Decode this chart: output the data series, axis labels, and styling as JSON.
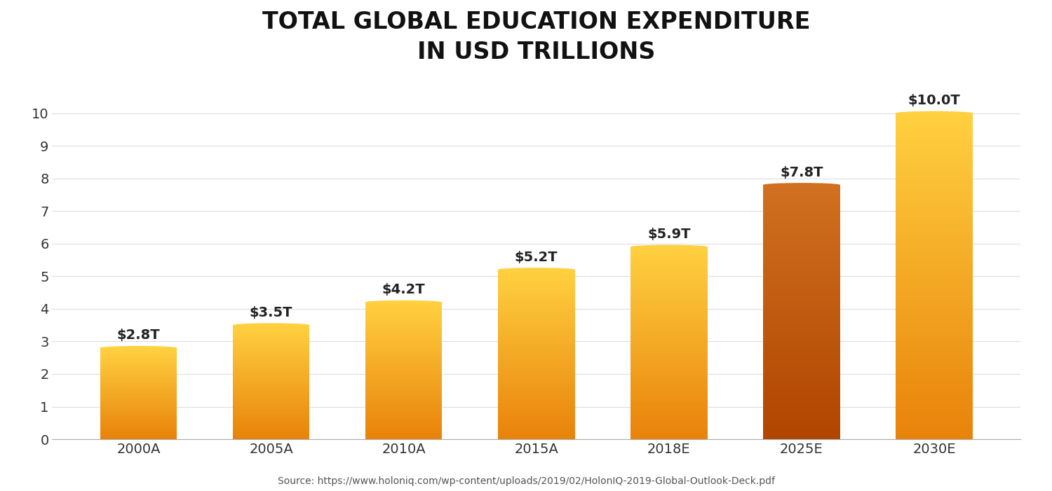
{
  "categories": [
    "2000A",
    "2005A",
    "2010A",
    "2015A",
    "2018E",
    "2025E",
    "2030E"
  ],
  "values": [
    2.8,
    3.5,
    4.2,
    5.2,
    5.9,
    7.8,
    10.0
  ],
  "labels": [
    "$2.8T",
    "$3.5T",
    "$4.2T",
    "$5.2T",
    "$5.9T",
    "$7.8T",
    "$10.0T"
  ],
  "color_pairs": [
    [
      "#E8820A",
      "#FFD040"
    ],
    [
      "#E8820A",
      "#FFD040"
    ],
    [
      "#E8820A",
      "#FFD040"
    ],
    [
      "#E8820A",
      "#FFD040"
    ],
    [
      "#E8820A",
      "#FFD040"
    ],
    [
      "#B04500",
      "#D07020"
    ],
    [
      "#E8820A",
      "#FFD040"
    ]
  ],
  "title_line1": "TOTAL GLOBAL EDUCATION EXPENDITURE",
  "title_line2": "IN USD TRILLIONS",
  "source": "Source: https://www.holoniq.com/wp-content/uploads/2019/02/HolonIQ-2019-Global-Outlook-Deck.pdf",
  "ylim": [
    0,
    11
  ],
  "yticks": [
    0,
    1,
    2,
    3,
    4,
    5,
    6,
    7,
    8,
    9,
    10
  ],
  "title_fontsize": 24,
  "label_fontsize": 14,
  "tick_fontsize": 14,
  "source_fontsize": 10,
  "background_color": "#FFFFFF",
  "grid_color": "#DDDDDD",
  "bar_width": 0.58
}
